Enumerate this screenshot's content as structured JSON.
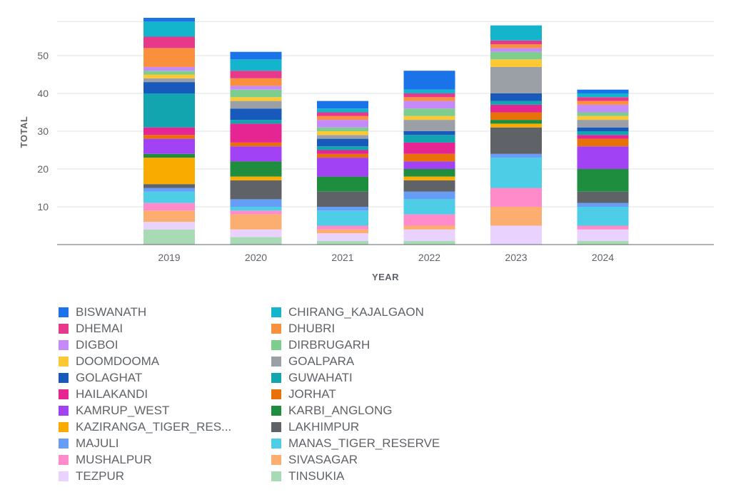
{
  "chart_data": {
    "type": "bar",
    "stacked": true,
    "xlabel": "YEAR",
    "ylabel": "TOTAL",
    "ylim": [
      0,
      60
    ],
    "yticks": [
      "10",
      "20",
      "30",
      "40",
      "50"
    ],
    "grid": true,
    "legend_position": "bottom",
    "categories": [
      "2019",
      "2020",
      "2021",
      "2022",
      "2023",
      "2024"
    ],
    "series": [
      {
        "name": "TINSUKIA",
        "color": "#a8dab5",
        "values": [
          4,
          2,
          1,
          1,
          0,
          1
        ]
      },
      {
        "name": "TEZPUR",
        "color": "#e9d2fd",
        "values": [
          2,
          2,
          2,
          3,
          5,
          3
        ]
      },
      {
        "name": "SIVASAGAR",
        "color": "#fcad70",
        "values": [
          3,
          4,
          1,
          1,
          5,
          0
        ]
      },
      {
        "name": "MUSHALPUR",
        "color": "#ff8bcb",
        "values": [
          2,
          1,
          1,
          3,
          5,
          1
        ]
      },
      {
        "name": "MANAS_TIGER_RESERVE",
        "color": "#4ecde6",
        "values": [
          3,
          1,
          4,
          4,
          8,
          5
        ]
      },
      {
        "name": "MAJULI",
        "color": "#669df6",
        "values": [
          1,
          2,
          1,
          2,
          1,
          1
        ]
      },
      {
        "name": "LAKHIMPUR",
        "color": "#5f6368",
        "values": [
          1,
          5,
          4,
          3,
          7,
          3
        ]
      },
      {
        "name": "KAZIRANGA_TIGER_RES...",
        "color": "#f9ab00",
        "values": [
          7,
          1,
          0,
          1,
          1,
          0
        ]
      },
      {
        "name": "KARBI_ANGLONG",
        "color": "#1e8e3e",
        "values": [
          1,
          4,
          4,
          2,
          1,
          6
        ]
      },
      {
        "name": "KAMRUP_WEST",
        "color": "#a142f4",
        "values": [
          4,
          4,
          5,
          2,
          0,
          6
        ]
      },
      {
        "name": "JORHAT",
        "color": "#e8710a",
        "values": [
          1,
          1,
          1,
          2,
          2,
          2
        ]
      },
      {
        "name": "HAILAKANDI",
        "color": "#e52592",
        "values": [
          2,
          5,
          1,
          3,
          2,
          1
        ]
      },
      {
        "name": "GUWAHATI",
        "color": "#12a4af",
        "values": [
          9,
          1,
          1,
          2,
          1,
          1
        ]
      },
      {
        "name": "GOLAGHAT",
        "color": "#185abc",
        "values": [
          3,
          3,
          2,
          1,
          2,
          1
        ]
      },
      {
        "name": "GOALPARA",
        "color": "#9aa0a6",
        "values": [
          1,
          2,
          1,
          3,
          7,
          2
        ]
      },
      {
        "name": "DOOMDOOMA",
        "color": "#fcc934",
        "values": [
          1,
          1,
          1,
          1,
          2,
          1
        ]
      },
      {
        "name": "DIRBRUGARH",
        "color": "#7ecc8e",
        "values": [
          1,
          2,
          1,
          2,
          2,
          1
        ]
      },
      {
        "name": "DIGBOI",
        "color": "#c58af9",
        "values": [
          1,
          1,
          2,
          2,
          1,
          2
        ]
      },
      {
        "name": "DHUBRI",
        "color": "#fa903e",
        "values": [
          5,
          2,
          1,
          1,
          1,
          1
        ]
      },
      {
        "name": "DHEMAI",
        "color": "#e8388a",
        "values": [
          3,
          2,
          1,
          1,
          1,
          1
        ]
      },
      {
        "name": "CHIRANG_KAJALGAON",
        "color": "#12b5cb",
        "values": [
          4,
          3,
          1,
          1,
          4,
          1
        ]
      },
      {
        "name": "BISWANATH",
        "color": "#1a73e8",
        "values": [
          1,
          2,
          2,
          5,
          0,
          1
        ]
      }
    ]
  },
  "legend": {
    "columns": [
      [
        "BISWANATH",
        "DHEMAI",
        "DIGBOI",
        "DOOMDOOMA",
        "GOLAGHAT",
        "HAILAKANDI",
        "KAMRUP_WEST",
        "KAZIRANGA_TIGER_RES...",
        "MAJULI",
        "MUSHALPUR",
        "TEZPUR"
      ],
      [
        "CHIRANG_KAJALGAON",
        "DHUBRI",
        "DIRBRUGARH",
        "GOALPARA",
        "GUWAHATI",
        "JORHAT",
        "KARBI_ANGLONG",
        "LAKHIMPUR",
        "MANAS_TIGER_RESERVE",
        "SIVASAGAR",
        "TINSUKIA"
      ]
    ]
  }
}
